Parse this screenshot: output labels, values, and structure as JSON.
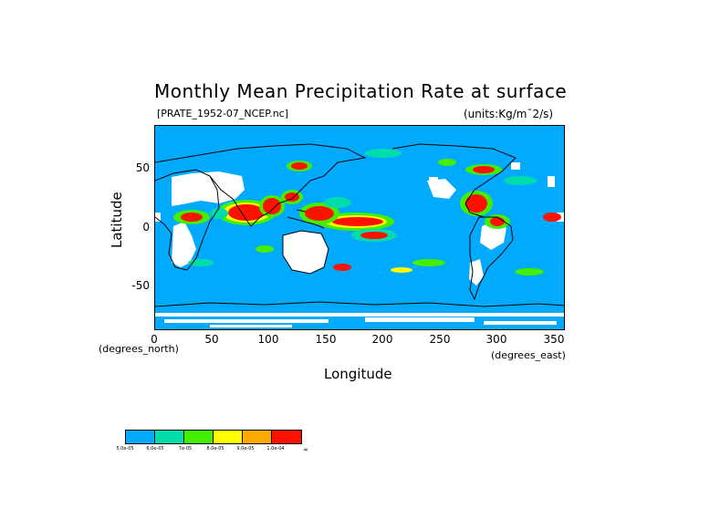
{
  "title": "Monthly Mean Precipitation Rate at surface",
  "file_label": "[PRATE_1952-07_NCEP.nc]",
  "units_label": "(units:Kg/m¯2/s)",
  "axes": {
    "x_label": "Longitude",
    "y_label": "Latitude",
    "x_unit": "(degrees_east)",
    "y_unit": "(degrees_north)",
    "x_ticks": [
      "0",
      "50",
      "100",
      "150",
      "200",
      "250",
      "300",
      "350"
    ],
    "y_ticks": [
      "50",
      "0",
      "-50"
    ]
  },
  "colors": {
    "ocean_base": "#00aaff",
    "missing": "#ffffff",
    "coast": "#000000"
  },
  "legend": {
    "colors": [
      "#00aaff",
      "#00ddaa",
      "#44ee00",
      "#ffff00",
      "#ffaa00",
      "#ff1100"
    ],
    "labels": [
      "5.0e-05",
      "6.0e-05",
      "7e-05",
      "8.0e-05",
      "9.0e-05",
      "1.0e-04",
      "∞"
    ]
  },
  "chart_data": {
    "type": "heatmap",
    "title": "Monthly Mean Precipitation Rate at surface",
    "xlabel": "Longitude",
    "ylabel": "Latitude",
    "xlim": [
      0,
      360
    ],
    "ylim": [
      -90,
      90
    ],
    "x_ticks": [
      0,
      50,
      100,
      150,
      200,
      250,
      300,
      350
    ],
    "y_ticks": [
      50,
      0,
      -50
    ],
    "units": "Kg/m^2/s",
    "legend_placement": "bottom-left"
  }
}
